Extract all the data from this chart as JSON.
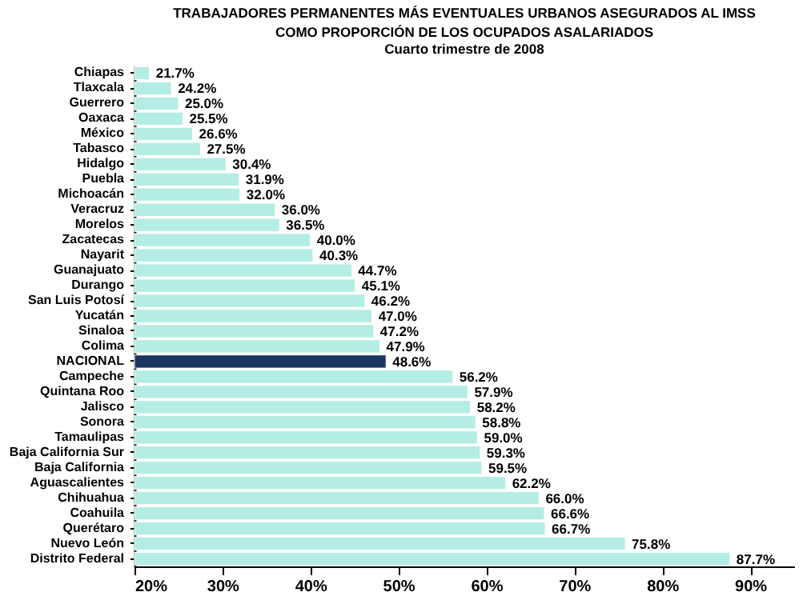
{
  "chart_data": {
    "type": "bar",
    "orientation": "horizontal",
    "title": "TRABAJADORES PERMANENTES MÁS EVENTUALES URBANOS ASEGURADOS AL IMSS\nCOMO PROPORCIÓN DE LOS OCUPADOS ASALARIADOS",
    "subtitle": "Cuarto trimestre de 2008",
    "categories": [
      "Chiapas",
      "Tlaxcala",
      "Guerrero",
      "Oaxaca",
      "México",
      "Tabasco",
      "Hidalgo",
      "Puebla",
      "Michoacán",
      "Veracruz",
      "Morelos",
      "Zacatecas",
      "Nayarit",
      "Guanajuato",
      "Durango",
      "San Luis Potosí",
      "Yucatán",
      "Sinaloa",
      "Colima",
      "NACIONAL",
      "Campeche",
      "Quintana Roo",
      "Jalisco",
      "Sonora",
      "Tamaulipas",
      "Baja California Sur",
      "Baja California",
      "Aguascalientes",
      "Chihuahua",
      "Coahuila",
      "Querétaro",
      "Nuevo León",
      "Distrito Federal"
    ],
    "values": [
      21.7,
      24.2,
      25.0,
      25.5,
      26.6,
      27.5,
      30.4,
      31.9,
      32.0,
      36.0,
      36.5,
      40.0,
      40.3,
      44.7,
      45.1,
      46.2,
      47.0,
      47.2,
      47.9,
      48.6,
      56.2,
      57.9,
      58.2,
      58.8,
      59.0,
      59.3,
      59.5,
      62.2,
      66.0,
      66.6,
      66.7,
      75.8,
      87.7
    ],
    "value_labels": [
      "21.7%",
      "24.2%",
      "25.0%",
      "25.5%",
      "26.6%",
      "27.5%",
      "30.4%",
      "31.9%",
      "32.0%",
      "36.0%",
      "36.5%",
      "40.0%",
      "40.3%",
      "44.7%",
      "45.1%",
      "46.2%",
      "47.0%",
      "47.2%",
      "47.9%",
      "48.6%",
      "56.2%",
      "57.9%",
      "58.2%",
      "58.8%",
      "59.0%",
      "59.3%",
      "59.5%",
      "62.2%",
      "66.0%",
      "66.6%",
      "66.7%",
      "75.8%",
      "87.7%"
    ],
    "colors": [
      "#b4ede3",
      "#b4ede3",
      "#b4ede3",
      "#b4ede3",
      "#b4ede3",
      "#b4ede3",
      "#b4ede3",
      "#b4ede3",
      "#b4ede3",
      "#b4ede3",
      "#b4ede3",
      "#b4ede3",
      "#b4ede3",
      "#b4ede3",
      "#b4ede3",
      "#b4ede3",
      "#b4ede3",
      "#b4ede3",
      "#b4ede3",
      "#1b3560",
      "#b4ede3",
      "#b4ede3",
      "#b4ede3",
      "#b4ede3",
      "#b4ede3",
      "#b4ede3",
      "#b4ede3",
      "#b4ede3",
      "#b4ede3",
      "#b4ede3",
      "#b4ede3",
      "#b4ede3",
      "#b4ede3"
    ],
    "xlim": [
      20,
      95
    ],
    "xticks": [
      {
        "value": 20,
        "label": "20%"
      },
      {
        "value": 30,
        "label": "30%"
      },
      {
        "value": 40,
        "label": "40%"
      },
      {
        "value": 50,
        "label": "50%"
      },
      {
        "value": 60,
        "label": "60%"
      },
      {
        "value": 70,
        "label": "70%"
      },
      {
        "value": 80,
        "label": "80%"
      },
      {
        "value": 90,
        "label": "90%"
      }
    ],
    "grid": false
  }
}
